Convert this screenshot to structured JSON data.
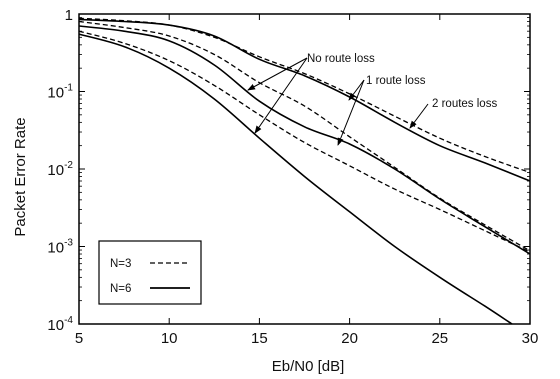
{
  "chart_data": {
    "type": "line",
    "title": "",
    "xlabel": "Eb/N0  [dB]",
    "ylabel": "Packet Error Rate",
    "xlim": [
      5,
      30
    ],
    "ylim": [
      0.0001,
      1
    ],
    "yscale": "log",
    "grid": false,
    "legend_position": "bottom-left",
    "x_ticks": [
      5,
      10,
      15,
      20,
      25,
      30
    ],
    "x_tick_labels": [
      "5",
      "10",
      "15",
      "20",
      "25",
      "30"
    ],
    "y_ticks": [
      1,
      0.1,
      0.01,
      0.001,
      0.0001
    ],
    "y_tick_labels": [
      {
        "base": "1",
        "exp": ""
      },
      {
        "base": "10",
        "exp": "-1"
      },
      {
        "base": "10",
        "exp": "-2"
      },
      {
        "base": "10",
        "exp": "-3"
      },
      {
        "base": "10",
        "exp": "-4"
      }
    ],
    "legend": [
      {
        "label": "N=3",
        "style": "dashed"
      },
      {
        "label": "N=6",
        "style": "solid"
      }
    ],
    "annotations": [
      "No route loss",
      "1 route loss",
      "2 routes loss"
    ],
    "series": [
      {
        "name": "",
        "N": 3,
        "route_loss": 0,
        "style": "dashed",
        "x": [
          5,
          7.5,
          10,
          12.5,
          15,
          17.5,
          20,
          22.5,
          25,
          27.5,
          30
        ],
        "y": [
          0.6,
          0.42,
          0.25,
          0.12,
          0.05,
          0.022,
          0.011,
          0.0055,
          0.003,
          0.0016,
          0.00085
        ]
      },
      {
        "name": "",
        "N": 6,
        "route_loss": 0,
        "style": "solid",
        "x": [
          5,
          7.5,
          10,
          12.5,
          15,
          17.5,
          20,
          22.5,
          25,
          27.5,
          29
        ],
        "y": [
          0.55,
          0.38,
          0.2,
          0.08,
          0.025,
          0.008,
          0.0028,
          0.001,
          0.0004,
          0.00017,
          0.0001
        ]
      },
      {
        "name": "",
        "N": 3,
        "route_loss": 1,
        "style": "dashed",
        "x": [
          5,
          7.5,
          10,
          12.5,
          15,
          17.5,
          20,
          22.5,
          25,
          27.5,
          30
        ],
        "y": [
          0.8,
          0.67,
          0.52,
          0.3,
          0.13,
          0.065,
          0.026,
          0.0105,
          0.0042,
          0.0019,
          0.00088
        ]
      },
      {
        "name": "",
        "N": 6,
        "route_loss": 1,
        "style": "solid",
        "x": [
          5,
          7.5,
          10,
          12.5,
          15,
          17.5,
          20,
          22.5,
          25,
          27.5,
          30
        ],
        "y": [
          0.7,
          0.6,
          0.45,
          0.22,
          0.075,
          0.035,
          0.021,
          0.01,
          0.0041,
          0.0018,
          0.0008
        ]
      },
      {
        "name": "",
        "N": 3,
        "route_loss": 2,
        "style": "dashed",
        "x": [
          5,
          7.5,
          10,
          12.5,
          15,
          17.5,
          20,
          22.5,
          25,
          27.5,
          30
        ],
        "y": [
          0.88,
          0.82,
          0.72,
          0.5,
          0.28,
          0.17,
          0.093,
          0.048,
          0.025,
          0.0145,
          0.009
        ]
      },
      {
        "name": "",
        "N": 6,
        "route_loss": 2,
        "style": "solid",
        "x": [
          5,
          7.5,
          10,
          12.5,
          15,
          17.5,
          20,
          22.5,
          25,
          27.5,
          30
        ],
        "y": [
          0.85,
          0.8,
          0.72,
          0.52,
          0.26,
          0.16,
          0.085,
          0.04,
          0.02,
          0.012,
          0.007
        ]
      }
    ]
  }
}
